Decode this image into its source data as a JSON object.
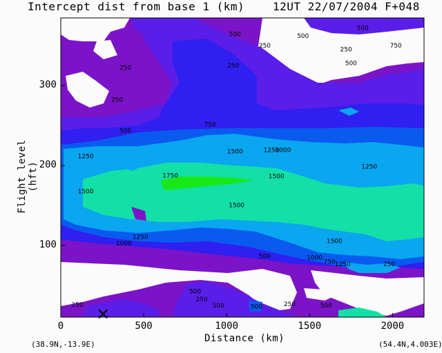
{
  "title_main": "Intercept dist from base 1 (km)",
  "title_time": "12UT 22/07/2004  F+048",
  "xlabel": "Distance  (km)",
  "ylabel": "Flight level  (hft)",
  "corner_left": "(38.9N,-13.9E)",
  "corner_right": "(54.4N,4.003E)",
  "chart_data": {
    "type": "contour",
    "xlim": [
      0,
      2190
    ],
    "ylim": [
      10,
      385
    ],
    "x_ticks": [
      0,
      500,
      1000,
      1500,
      2000
    ],
    "x_tick_labels": [
      "0",
      "500",
      "1000",
      "1500",
      "2000"
    ],
    "y_ticks": [
      100,
      200,
      300
    ],
    "y_tick_labels": [
      "100",
      "200",
      "300"
    ],
    "levels": [
      0,
      250,
      500,
      750,
      1000,
      1250,
      1500,
      1750
    ],
    "fill_colors": [
      "#fbfbfb",
      "#7b14c8",
      "#5a1ee8",
      "#2f1ff0",
      "#0a5af0",
      "#0aa6f0",
      "#12e0a6",
      "#18e818"
    ],
    "marker": {
      "x": 255,
      "y": 14,
      "symbol": "X"
    },
    "contour_labels": [
      {
        "x": 1050,
        "y": 215,
        "text": "1500"
      },
      {
        "x": 1270,
        "y": 217,
        "text": "1250"
      },
      {
        "x": 1340,
        "y": 217,
        "text": "1000"
      },
      {
        "x": 1300,
        "y": 184,
        "text": "1500"
      },
      {
        "x": 1060,
        "y": 148,
        "text": "1500"
      },
      {
        "x": 660,
        "y": 185,
        "text": "1750"
      },
      {
        "x": 1650,
        "y": 103,
        "text": "1500"
      },
      {
        "x": 1700,
        "y": 74,
        "text": "1250"
      },
      {
        "x": 1530,
        "y": 82,
        "text": "1000"
      },
      {
        "x": 1620,
        "y": 77,
        "text": "750"
      },
      {
        "x": 1230,
        "y": 84,
        "text": "500"
      },
      {
        "x": 380,
        "y": 100,
        "text": "1000"
      },
      {
        "x": 480,
        "y": 108,
        "text": "1250"
      },
      {
        "x": 150,
        "y": 165,
        "text": "1500"
      },
      {
        "x": 150,
        "y": 209,
        "text": "1250"
      },
      {
        "x": 1860,
        "y": 196,
        "text": "1250"
      },
      {
        "x": 2020,
        "y": 348,
        "text": "750"
      },
      {
        "x": 1720,
        "y": 343,
        "text": "250"
      },
      {
        "x": 1820,
        "y": 370,
        "text": "500"
      },
      {
        "x": 1750,
        "y": 326,
        "text": "500"
      },
      {
        "x": 1460,
        "y": 360,
        "text": "500"
      },
      {
        "x": 1050,
        "y": 362,
        "text": "500"
      },
      {
        "x": 900,
        "y": 249,
        "text": "750"
      },
      {
        "x": 390,
        "y": 241,
        "text": "500"
      },
      {
        "x": 340,
        "y": 280,
        "text": "250"
      },
      {
        "x": 390,
        "y": 320,
        "text": "250"
      },
      {
        "x": 1040,
        "y": 323,
        "text": "250"
      },
      {
        "x": 1230,
        "y": 348,
        "text": "250"
      },
      {
        "x": 1600,
        "y": 22,
        "text": "500"
      },
      {
        "x": 810,
        "y": 40,
        "text": "500"
      },
      {
        "x": 850,
        "y": 30,
        "text": "250"
      },
      {
        "x": 1380,
        "y": 24,
        "text": "250"
      },
      {
        "x": 950,
        "y": 22,
        "text": "500"
      },
      {
        "x": 1180,
        "y": 21,
        "text": "500"
      },
      {
        "x": 100,
        "y": 23,
        "text": "250"
      },
      {
        "x": 1980,
        "y": 74,
        "text": "250"
      }
    ]
  }
}
